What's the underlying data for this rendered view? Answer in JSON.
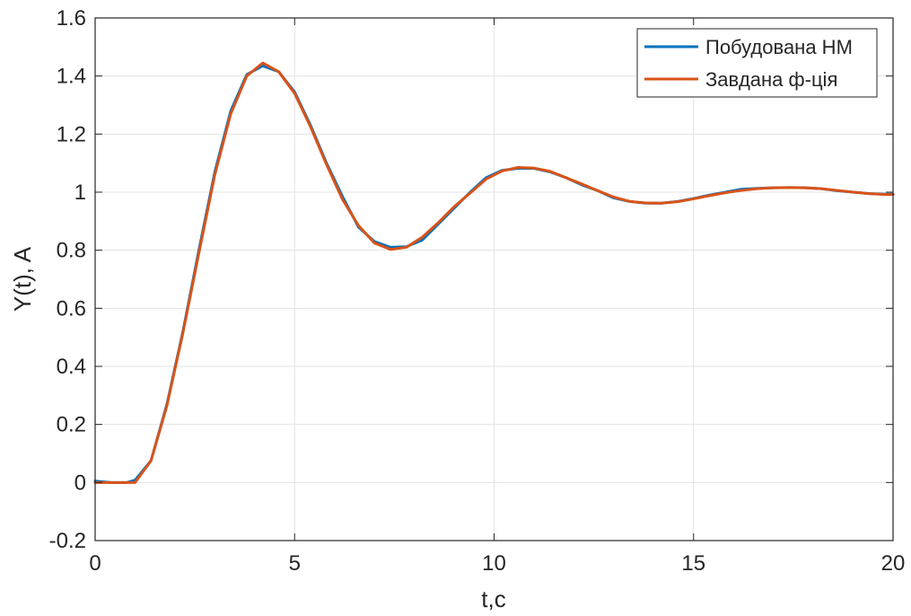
{
  "chart_data": {
    "type": "line",
    "title": "",
    "xlabel": "t,c",
    "ylabel": "Y(t), A",
    "xlim": [
      0,
      20
    ],
    "ylim": [
      -0.2,
      1.6
    ],
    "xticks": [
      0,
      5,
      10,
      15,
      20
    ],
    "yticks": [
      -0.2,
      0,
      0.2,
      0.4,
      0.6,
      0.8,
      1,
      1.2,
      1.4,
      1.6
    ],
    "xtick_labels": [
      "0",
      "5",
      "10",
      "15",
      "20"
    ],
    "ytick_labels": [
      "-0.2",
      "0",
      "0.2",
      "0.4",
      "0.6",
      "0.8",
      "1",
      "1.2",
      "1.4",
      "1.6"
    ],
    "grid": true,
    "legend_position": "top-right",
    "series": [
      {
        "name": "Побудована НМ",
        "color": "#0072BD",
        "x": [
          0,
          0.4,
          0.8,
          1.0,
          1.4,
          1.8,
          2.2,
          2.6,
          3.0,
          3.4,
          3.8,
          4.2,
          4.6,
          5.0,
          5.4,
          5.8,
          6.2,
          6.6,
          7.0,
          7.4,
          7.8,
          8.2,
          8.6,
          9.0,
          9.4,
          9.8,
          10.2,
          10.6,
          11.0,
          11.4,
          11.8,
          12.2,
          12.6,
          13.0,
          13.4,
          13.8,
          14.2,
          14.6,
          15.0,
          15.4,
          15.8,
          16.2,
          16.6,
          17.0,
          17.4,
          17.8,
          18.2,
          18.6,
          19.0,
          19.4,
          19.8,
          20.0
        ],
        "y": [
          0.005,
          0.0,
          0.0,
          0.008,
          0.075,
          0.27,
          0.52,
          0.8,
          1.07,
          1.28,
          1.405,
          1.435,
          1.415,
          1.345,
          1.23,
          1.1,
          0.985,
          0.88,
          0.83,
          0.81,
          0.812,
          0.835,
          0.89,
          0.945,
          1.0,
          1.05,
          1.075,
          1.082,
          1.082,
          1.07,
          1.05,
          1.025,
          1.005,
          0.98,
          0.968,
          0.962,
          0.962,
          0.968,
          0.978,
          0.99,
          1.0,
          1.01,
          1.013,
          1.015,
          1.016,
          1.015,
          1.012,
          1.005,
          1.0,
          0.995,
          0.993,
          0.993
        ]
      },
      {
        "name": "Завдана ф-ція",
        "color": "#D95319",
        "x": [
          0,
          0.4,
          0.8,
          1.0,
          1.4,
          1.8,
          2.2,
          2.6,
          3.0,
          3.4,
          3.8,
          4.2,
          4.6,
          5.0,
          5.4,
          5.8,
          6.2,
          6.6,
          7.0,
          7.4,
          7.8,
          8.2,
          8.6,
          9.0,
          9.4,
          9.8,
          10.2,
          10.6,
          11.0,
          11.4,
          11.8,
          12.2,
          12.6,
          13.0,
          13.4,
          13.8,
          14.2,
          14.6,
          15.0,
          15.4,
          15.8,
          16.2,
          16.6,
          17.0,
          17.4,
          17.8,
          18.2,
          18.6,
          19.0,
          19.4,
          19.8,
          20.0
        ],
        "y": [
          0.0,
          0.0,
          0.0,
          0.0,
          0.075,
          0.265,
          0.515,
          0.79,
          1.06,
          1.27,
          1.4,
          1.445,
          1.415,
          1.34,
          1.225,
          1.095,
          0.975,
          0.885,
          0.825,
          0.803,
          0.81,
          0.845,
          0.895,
          0.95,
          0.997,
          1.045,
          1.073,
          1.085,
          1.083,
          1.072,
          1.05,
          1.028,
          1.005,
          0.983,
          0.968,
          0.963,
          0.962,
          0.967,
          0.977,
          0.988,
          0.998,
          1.006,
          1.012,
          1.015,
          1.016,
          1.015,
          1.012,
          1.006,
          1.0,
          0.995,
          0.992,
          0.992
        ]
      }
    ]
  }
}
